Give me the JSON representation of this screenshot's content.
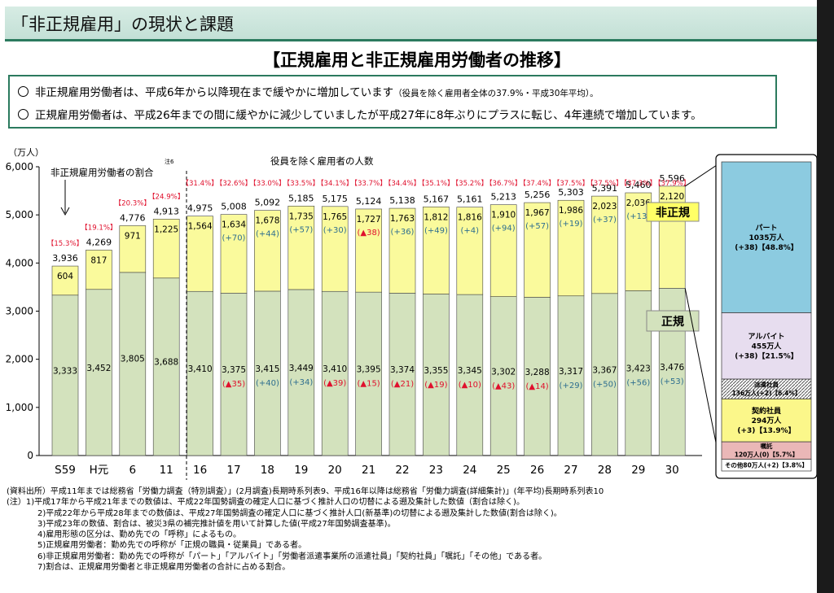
{
  "header": {
    "title": "「非正規雇用」の現状と課題",
    "subtitle": "【正規雇用と非正規雇用労働者の推移】"
  },
  "notes": [
    {
      "text": "非正規雇用労働者は、平成6年から以降現在まで緩やかに増加しています",
      "small": "（役員を除く雇用者全体の37.9%・平成30年平均）。"
    },
    {
      "text": "正規雇用労働者は、平成26年までの間に緩やかに減少していましたが平成27年に8年ぶりにプラスに転じ、4年連続で増加しています。",
      "small": ""
    }
  ],
  "chart_data": {
    "type": "bar",
    "stacked": true,
    "unit_label": "（万人）",
    "annotations": {
      "ratio_label": "非正規雇用労働者の割合",
      "total_label": "役員を除く雇用者の人数",
      "footnote_mark": "注6",
      "hiseiki_label": "非正規",
      "seiki_label": "正規"
    },
    "ylim": [
      0,
      6000
    ],
    "yticks": [
      "0",
      "1,000",
      "2,000",
      "3,000",
      "4,000",
      "5,000",
      "6,000"
    ],
    "categories": [
      "S59",
      "H元",
      "6",
      "11",
      "16",
      "17",
      "18",
      "19",
      "20",
      "21",
      "22",
      "23",
      "24",
      "25",
      "26",
      "27",
      "28",
      "29",
      "30"
    ],
    "series": [
      {
        "name": "正規",
        "color": "#d3e2bd",
        "values": [
          3333,
          3452,
          3805,
          3688,
          3410,
          3375,
          3415,
          3449,
          3410,
          3395,
          3374,
          3355,
          3345,
          3302,
          3288,
          3317,
          3367,
          3423,
          3476
        ],
        "labels": [
          "3,333",
          "3,452",
          "3,805",
          "3,688",
          "3,410",
          "3,375",
          "3,415",
          "3,449",
          "3,410",
          "3,395",
          "3,374",
          "3,355",
          "3,345",
          "3,302",
          "3,288",
          "3,317",
          "3,367",
          "3,423",
          "3,476"
        ]
      },
      {
        "name": "非正規",
        "color": "#fafa9c",
        "values": [
          604,
          817,
          971,
          1225,
          1564,
          1634,
          1678,
          1735,
          1765,
          1727,
          1763,
          1812,
          1816,
          1910,
          1967,
          1986,
          2023,
          2036,
          2120
        ],
        "labels": [
          "604",
          "817",
          "971",
          "1,225",
          "1,564",
          "1,634",
          "1,678",
          "1,735",
          "1,765",
          "1,727",
          "1,763",
          "1,812",
          "1,816",
          "1,910",
          "1,967",
          "1,986",
          "2,023",
          "2,036",
          "2,120"
        ]
      }
    ],
    "totals": [
      3936,
      4269,
      4776,
      4913,
      4975,
      5008,
      5092,
      5185,
      5175,
      5124,
      5138,
      5167,
      5161,
      5213,
      5256,
      5303,
      5391,
      5460,
      5596
    ],
    "total_labels": [
      "3,936",
      "4,269",
      "4,776",
      "4,913",
      "4,975",
      "5,008",
      "5,092",
      "5,185",
      "5,175",
      "5,124",
      "5,138",
      "5,167",
      "5,161",
      "5,213",
      "5,256",
      "5,303",
      "5,391",
      "5,460",
      "5,596"
    ],
    "ratio_labels": [
      "【15.3%】",
      "【19.1%】",
      "【20.3%】",
      "【24.9%】",
      "【31.4%】",
      "【32.6%】",
      "【33.0%】",
      "【33.5%】",
      "【34.1%】",
      "【33.7%】",
      "【34.4%】",
      "【35.1%】",
      "【35.2%】",
      "【36.7%】",
      "【37.4%】",
      "【37.5%】",
      "【37.5%】",
      "【37.3%】",
      "【37.9%】"
    ],
    "hiseiki_change": [
      "",
      "",
      "",
      "",
      "",
      "(+70)",
      "(+44)",
      "(+57)",
      "(+30)",
      "(▲38)",
      "(+36)",
      "(+49)",
      "(+4)",
      "(+94)",
      "(+57)",
      "(+19)",
      "(+37)",
      "(+13)",
      "(+84)"
    ],
    "seiki_change": [
      "",
      "",
      "",
      "",
      "",
      "(▲35)",
      "(+40)",
      "(+34)",
      "(▲39)",
      "(▲15)",
      "(▲21)",
      "(▲19)",
      "(▲10)",
      "(▲43)",
      "(▲14)",
      "(+29)",
      "(+50)",
      "(+56)",
      "(+53)"
    ],
    "breakdown": [
      {
        "name": "パート",
        "l2": "1035万人",
        "l3": "(+38)【48.8%】",
        "value": 1035,
        "color": "#8ccbe0"
      },
      {
        "name": "アルバイト",
        "l2": "455万人",
        "l3": "(+38)【21.5%】",
        "value": 455,
        "color": "#e7ddef"
      },
      {
        "name": "派遣社員",
        "l2": "136万人(+2)【6.4%】",
        "l3": "",
        "value": 136,
        "color": "#ffffff",
        "pattern": true
      },
      {
        "name": "契約社員",
        "l2": "294万人",
        "l3": "(+3)【13.9%】",
        "value": 294,
        "color": "#fbf78a"
      },
      {
        "name": "嘱託",
        "l2": "120万人(0)【5.7%】",
        "l3": "",
        "value": 120,
        "color": "#eab7b7"
      },
      {
        "name": "その他80万人(+2)【3.8%】",
        "l2": "",
        "l3": "",
        "value": 80,
        "color": "#ffffff"
      }
    ]
  },
  "footnotes": [
    "(資料出所）平成11年までは総務省「労働力調査（特別調査）」(2月調査)長期時系列表9、平成16年以降は総務省「労働力調査(詳細集計)」(年平均)長期時系列表10",
    "(注）1)平成17年から平成21年までの数値は、平成22年国勢調査の確定人口に基づく推計人口の切替による遡及集計した数値（割合は除く)。",
    "2)平成22年から平成28年までの数値は、平成27年国勢調査の確定人口に基づく推計人口(新基準)の切替による遡及集計した数値(割合は除く)。",
    "3)平成23年の数値、割合は、被災3県の補完推計値を用いて計算した値(平成27年国勢調査基準)。",
    "4)雇用形態の区分は、勤め先での「呼称」によるもの。",
    "5)正規雇用労働者：勤め先での呼称が「正規の職員・従業員」である者。",
    "6)非正規雇用労働者：勤め先での呼称が「パート」「アルバイト」「労働者派遣事業所の派遣社員」「契約社員」「嘱託」「その他」である者。",
    "7)割合は、正規雇用労働者と非正規雇用労働者の合計に占める割合。"
  ]
}
